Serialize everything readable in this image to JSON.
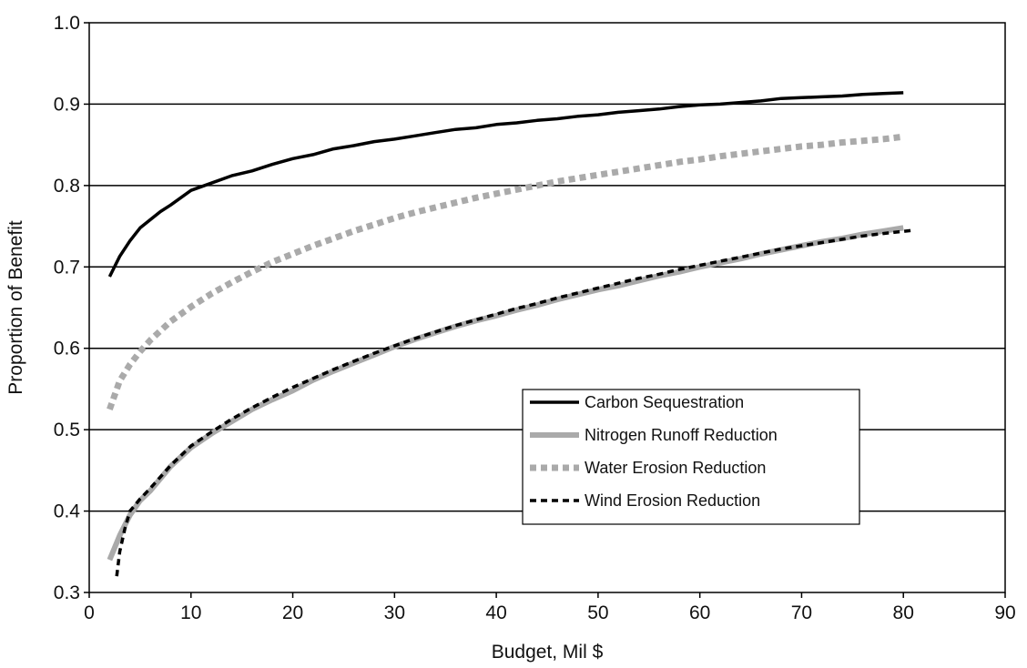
{
  "chart_data": {
    "type": "line",
    "title": "",
    "xlabel": "Budget, Mil $",
    "ylabel": "Proportion of Benefit",
    "xlim": [
      0,
      90
    ],
    "ylim": [
      0.3,
      1.0
    ],
    "x_ticks": [
      "0",
      "10",
      "20",
      "30",
      "40",
      "50",
      "60",
      "70",
      "80",
      "90"
    ],
    "y_ticks": [
      "0.3",
      "0.4",
      "0.5",
      "0.6",
      "0.7",
      "0.8",
      "0.9",
      "1.0"
    ],
    "grid": "horizontal",
    "legend_position": "center-right",
    "series": [
      {
        "name": "Carbon Sequestration",
        "color": "#000000",
        "style": "solid",
        "x": [
          2,
          3,
          4,
          5,
          6,
          7,
          8,
          10,
          12,
          14,
          16,
          18,
          20,
          22,
          24,
          26,
          28,
          30,
          32,
          34,
          36,
          38,
          40,
          42,
          44,
          46,
          48,
          50,
          52,
          54,
          56,
          58,
          60,
          62,
          64,
          66,
          68,
          70,
          72,
          74,
          76,
          78,
          80
        ],
        "y": [
          0.688,
          0.713,
          0.732,
          0.748,
          0.758,
          0.768,
          0.776,
          0.794,
          0.803,
          0.812,
          0.818,
          0.826,
          0.833,
          0.838,
          0.845,
          0.849,
          0.854,
          0.857,
          0.861,
          0.865,
          0.869,
          0.871,
          0.875,
          0.877,
          0.88,
          0.882,
          0.885,
          0.887,
          0.89,
          0.892,
          0.894,
          0.897,
          0.899,
          0.9,
          0.902,
          0.904,
          0.907,
          0.908,
          0.909,
          0.91,
          0.912,
          0.913,
          0.914
        ]
      },
      {
        "name": "Nitrogen Runoff Reduction",
        "color": "#aaaaaa",
        "style": "solid",
        "x": [
          2,
          3,
          4,
          5,
          6,
          8,
          10,
          12,
          14,
          16,
          18,
          20,
          22,
          24,
          26,
          28,
          30,
          32,
          34,
          36,
          38,
          40,
          42,
          44,
          46,
          48,
          50,
          52,
          54,
          56,
          58,
          60,
          62,
          64,
          66,
          68,
          70,
          72,
          74,
          76,
          78,
          80
        ],
        "y": [
          0.34,
          0.37,
          0.395,
          0.413,
          0.425,
          0.455,
          0.478,
          0.495,
          0.51,
          0.525,
          0.537,
          0.548,
          0.561,
          0.572,
          0.582,
          0.592,
          0.602,
          0.611,
          0.619,
          0.627,
          0.634,
          0.64,
          0.647,
          0.653,
          0.66,
          0.666,
          0.672,
          0.677,
          0.683,
          0.689,
          0.694,
          0.7,
          0.705,
          0.71,
          0.716,
          0.721,
          0.726,
          0.731,
          0.735,
          0.74,
          0.744,
          0.748
        ]
      },
      {
        "name": "Water Erosion Reduction",
        "color": "#aaaaaa",
        "style": "dotted",
        "x": [
          2,
          3,
          4,
          5,
          6,
          8,
          10,
          12,
          14,
          16,
          18,
          20,
          22,
          24,
          26,
          28,
          30,
          32,
          34,
          36,
          38,
          40,
          42,
          44,
          46,
          48,
          50,
          52,
          54,
          56,
          58,
          60,
          62,
          64,
          66,
          68,
          70,
          72,
          74,
          76,
          78,
          80
        ],
        "y": [
          0.525,
          0.56,
          0.58,
          0.596,
          0.61,
          0.633,
          0.651,
          0.667,
          0.681,
          0.694,
          0.706,
          0.716,
          0.726,
          0.735,
          0.744,
          0.752,
          0.76,
          0.767,
          0.773,
          0.779,
          0.785,
          0.79,
          0.795,
          0.8,
          0.805,
          0.809,
          0.813,
          0.817,
          0.821,
          0.825,
          0.829,
          0.832,
          0.836,
          0.839,
          0.842,
          0.845,
          0.848,
          0.85,
          0.853,
          0.855,
          0.857,
          0.86
        ]
      },
      {
        "name": "Wind Erosion Reduction",
        "color": "#000000",
        "style": "dashed",
        "x": [
          2.7,
          3,
          3.5,
          4,
          5,
          6,
          8,
          10,
          12,
          14,
          16,
          18,
          20,
          22,
          24,
          26,
          28,
          30,
          32,
          34,
          36,
          38,
          40,
          42,
          44,
          46,
          48,
          50,
          52,
          54,
          56,
          58,
          60,
          62,
          64,
          66,
          68,
          70,
          72,
          74,
          76,
          78,
          81
        ],
        "y": [
          0.32,
          0.35,
          0.378,
          0.4,
          0.415,
          0.428,
          0.456,
          0.48,
          0.497,
          0.513,
          0.527,
          0.54,
          0.552,
          0.563,
          0.574,
          0.584,
          0.594,
          0.603,
          0.612,
          0.62,
          0.628,
          0.635,
          0.642,
          0.649,
          0.655,
          0.662,
          0.668,
          0.674,
          0.68,
          0.686,
          0.691,
          0.697,
          0.702,
          0.707,
          0.712,
          0.717,
          0.722,
          0.726,
          0.73,
          0.734,
          0.738,
          0.741,
          0.745
        ]
      }
    ]
  }
}
